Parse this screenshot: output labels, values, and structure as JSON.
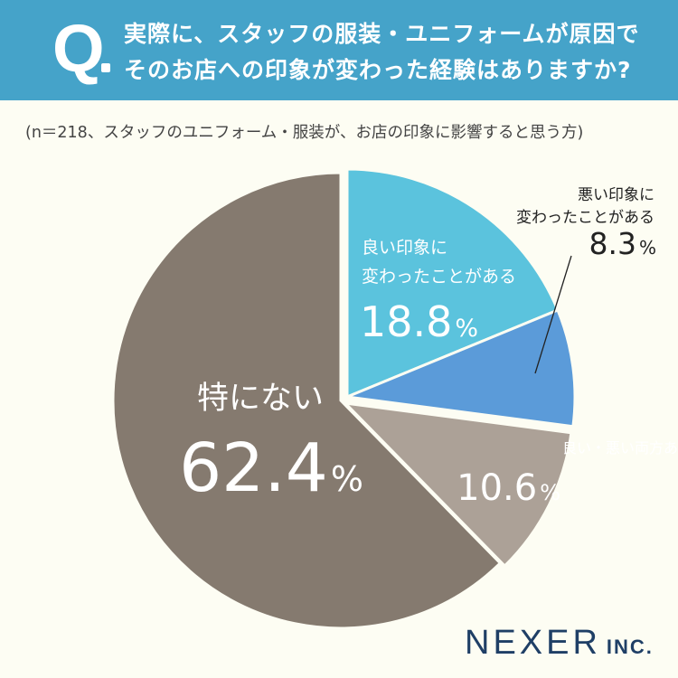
{
  "header": {
    "q_mark": "Q",
    "question_line1": "実際に、スタッフの服装・ユニフォームが原因で",
    "question_line2": "そのお店への印象が変わった経験はありますか?"
  },
  "subtitle": "(n＝218、スタッフのユニフォーム・服装が、お店の印象に影響すると思う方)",
  "chart_data": {
    "type": "pie",
    "title": "実際に、スタッフの服装・ユニフォームが原因でそのお店への印象が変わった経験はありますか?",
    "n": 218,
    "unit": "%",
    "slices": [
      {
        "label_line1": "良い印象に",
        "label_line2": "変わったことがある",
        "value": 18.8,
        "value_text": "18.8",
        "color": "#5bc3dd"
      },
      {
        "label_line1": "悪い印象に",
        "label_line2": "変わったことがある",
        "value": 8.3,
        "value_text": "8.3",
        "color": "#5b9bd9"
      },
      {
        "label_line1": "良い・悪い両方ある",
        "label_line2": "",
        "value": 10.6,
        "value_text": "10.6",
        "color": "#aca197"
      },
      {
        "label_line1": "特にない",
        "label_line2": "",
        "value": 62.4,
        "value_text": "62.4",
        "color": "#857a6f"
      }
    ]
  },
  "logo": {
    "main": "NEXER",
    "sub": "INC."
  }
}
